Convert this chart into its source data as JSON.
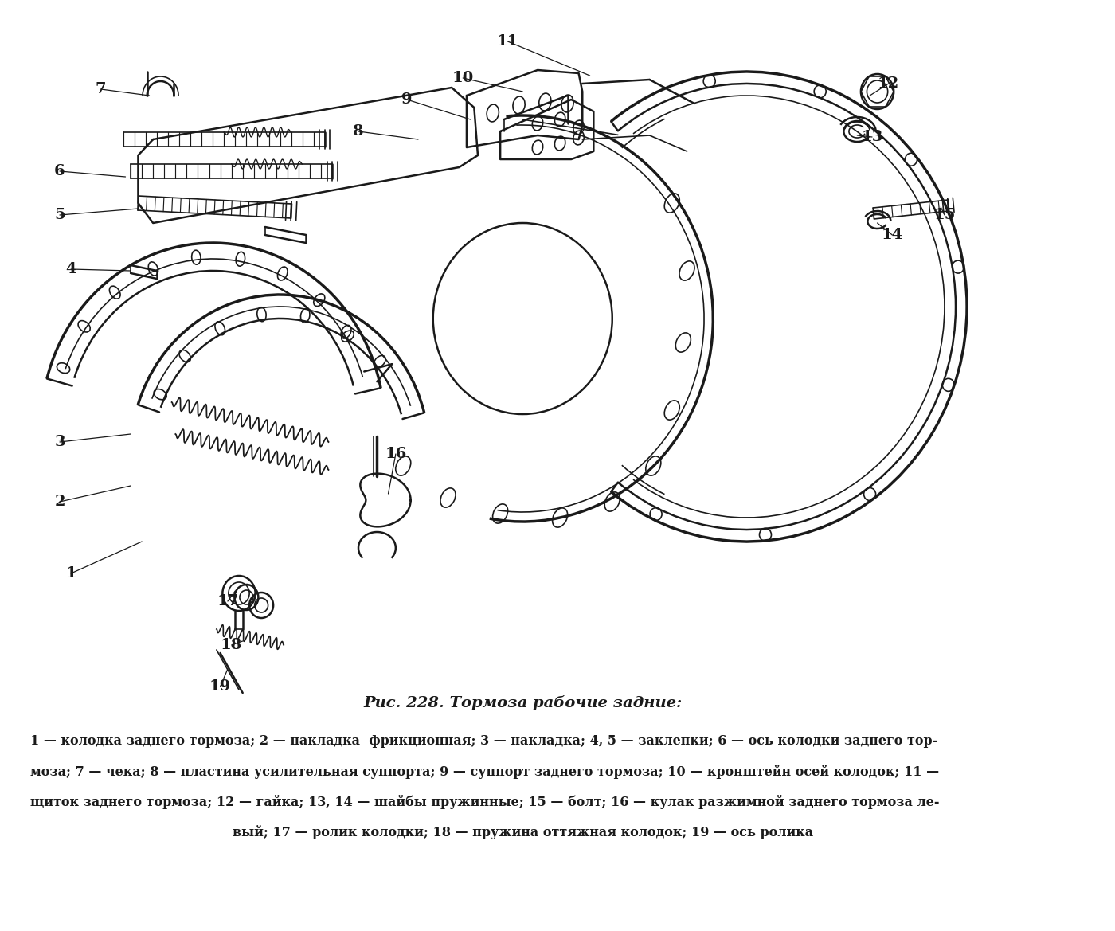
{
  "bg_color": "#ffffff",
  "drawing_color": "#1a1a1a",
  "title": "Рис. 228. Тормоза рабочие задние:",
  "caption_line1": "1 — колодка заднего тормоза; 2 — накладка  фрикционная; 3 — накладка; 4, 5 — заклепки; 6 — ось колодки заднего тор-",
  "caption_line2": "моза; 7 — чека; 8 — пластина усилительная суппорта; 9 — суппорт заднего тормоза; 10 — кронштейн осей колодок; 11 —",
  "caption_line3": "щиток заднего тормоза; 12 — гайка; 13, 14 — шайбы пружинные; 15 — болт; 16 — кулак разжимной заднего тормоза ле-",
  "caption_line4": "вый; 17 — ролик колодки; 18 — пружина оттяжная колодок; 19 — ось ролика",
  "lw": 1.2,
  "lw2": 1.8,
  "lw3": 2.5,
  "label_fs": 14,
  "title_fs": 14,
  "cap_fs": 11.5
}
